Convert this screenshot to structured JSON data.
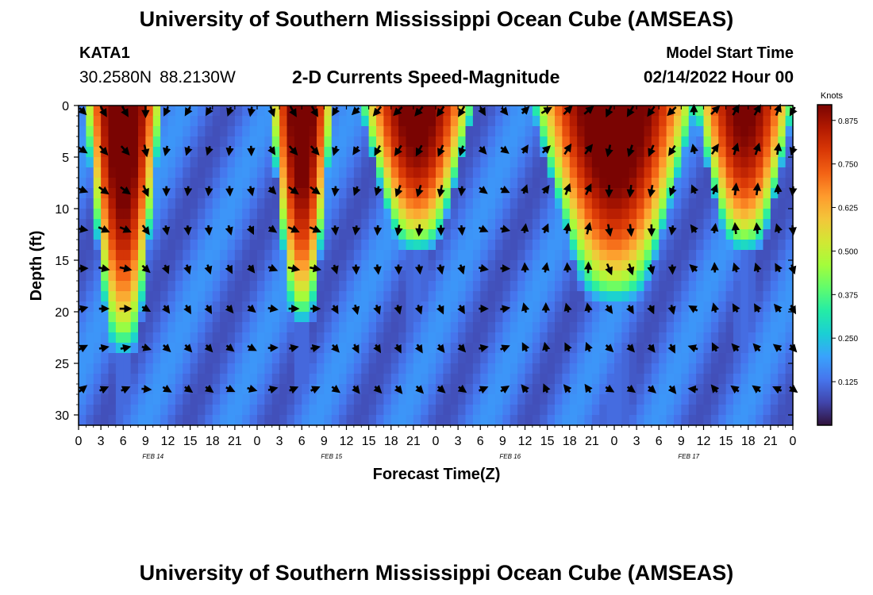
{
  "header": {
    "title": "University of Southern Mississippi Ocean Cube (AMSEAS)",
    "station": "KATA1",
    "latitude": "30.2580N",
    "longitude": "88.2130W",
    "subtitle": "2-D Currents Speed-Magnitude",
    "model_start_label": "Model Start Time",
    "model_start_value": "02/14/2022 Hour 00"
  },
  "footer": {
    "title": "University of Southern Mississippi Ocean Cube (AMSEAS)"
  },
  "colors": {
    "frame": "#000000",
    "arrow": "#000000",
    "colormap": [
      "#30123b",
      "#4145ab",
      "#4675ed",
      "#39a2fc",
      "#1bcfd4",
      "#24eca6",
      "#61fc6c",
      "#a4fc3b",
      "#d1e834",
      "#f3c63a",
      "#fe9b2d",
      "#f36315",
      "#d93806",
      "#b11901",
      "#7a0402"
    ]
  },
  "chart_data": {
    "type": "heatmap",
    "title": "2-D Currents Speed-Magnitude",
    "xlabel": "Forecast Time(Z)",
    "ylabel": "Depth (ft)",
    "x_range": [
      0,
      96
    ],
    "y_range": [
      0,
      31
    ],
    "y_inverted": true,
    "x_ticks": [
      0,
      3,
      6,
      9,
      12,
      15,
      18,
      21,
      24,
      27,
      30,
      33,
      36,
      39,
      42,
      45,
      48,
      51,
      54,
      57,
      60,
      63,
      66,
      69,
      72,
      75,
      78,
      81,
      84,
      87,
      90,
      93,
      96
    ],
    "x_tick_labels": [
      "0",
      "3",
      "6",
      "9",
      "12",
      "15",
      "18",
      "21",
      "0",
      "3",
      "6",
      "9",
      "12",
      "15",
      "18",
      "21",
      "0",
      "3",
      "6",
      "9",
      "12",
      "15",
      "18",
      "21",
      "0",
      "3",
      "6",
      "9",
      "12",
      "15",
      "18",
      "21",
      "0"
    ],
    "date_labels": [
      {
        "hour": 10,
        "text": "FEB 14"
      },
      {
        "hour": 34,
        "text": "FEB 15"
      },
      {
        "hour": 58,
        "text": "FEB 16"
      },
      {
        "hour": 82,
        "text": "FEB 17"
      }
    ],
    "y_ticks": [
      0,
      5,
      10,
      15,
      20,
      25,
      30
    ],
    "colorbar": {
      "label": "Knots",
      "min": 0,
      "max": 0.92,
      "ticks": [
        0.125,
        0.25,
        0.375,
        0.5,
        0.625,
        0.75,
        0.875
      ],
      "tick_labels": [
        "0.125",
        "0.250",
        "0.375",
        "0.500",
        "0.625",
        "0.750",
        "0.875"
      ]
    },
    "speed_pulses": [
      {
        "hours": [
          1,
          11
        ],
        "peak": 0.9,
        "max_depth": 24
      },
      {
        "hours": [
          26,
          34
        ],
        "peak": 0.88,
        "max_depth": 21
      },
      {
        "hours": [
          38,
          53
        ],
        "peak": 0.85,
        "max_depth": 14
      },
      {
        "hours": [
          61,
          83
        ],
        "peak": 0.9,
        "max_depth": 19
      },
      {
        "hours": [
          83,
          96
        ],
        "peak": 0.82,
        "max_depth": 14
      }
    ],
    "background_speed": 0.13,
    "vector_depths": [
      0.5,
      4.3,
      8.2,
      12,
      15.8,
      19.7,
      23.5,
      27.5
    ],
    "vector_hours": [
      0.5,
      3.3,
      6.2,
      9,
      11.8,
      14.7,
      17.5,
      20.3,
      23.2,
      26,
      28.8,
      31.7,
      34.5,
      37.3,
      40.2,
      43,
      45.8,
      48.7,
      51.5,
      54.3,
      57.2,
      60,
      62.8,
      65.7,
      68.5,
      71.3,
      74.2,
      77,
      79.8,
      82.7,
      85.5,
      88.3,
      91.2,
      94,
      96
    ],
    "direction_pattern_deg": [
      315,
      300,
      300,
      270,
      245,
      240,
      240,
      250,
      260,
      290,
      300,
      300,
      240,
      225,
      230,
      225,
      230,
      235,
      240,
      300,
      310,
      45,
      30,
      45,
      40,
      245,
      240,
      235,
      225,
      90,
      45,
      60,
      60,
      70,
      240
    ]
  }
}
